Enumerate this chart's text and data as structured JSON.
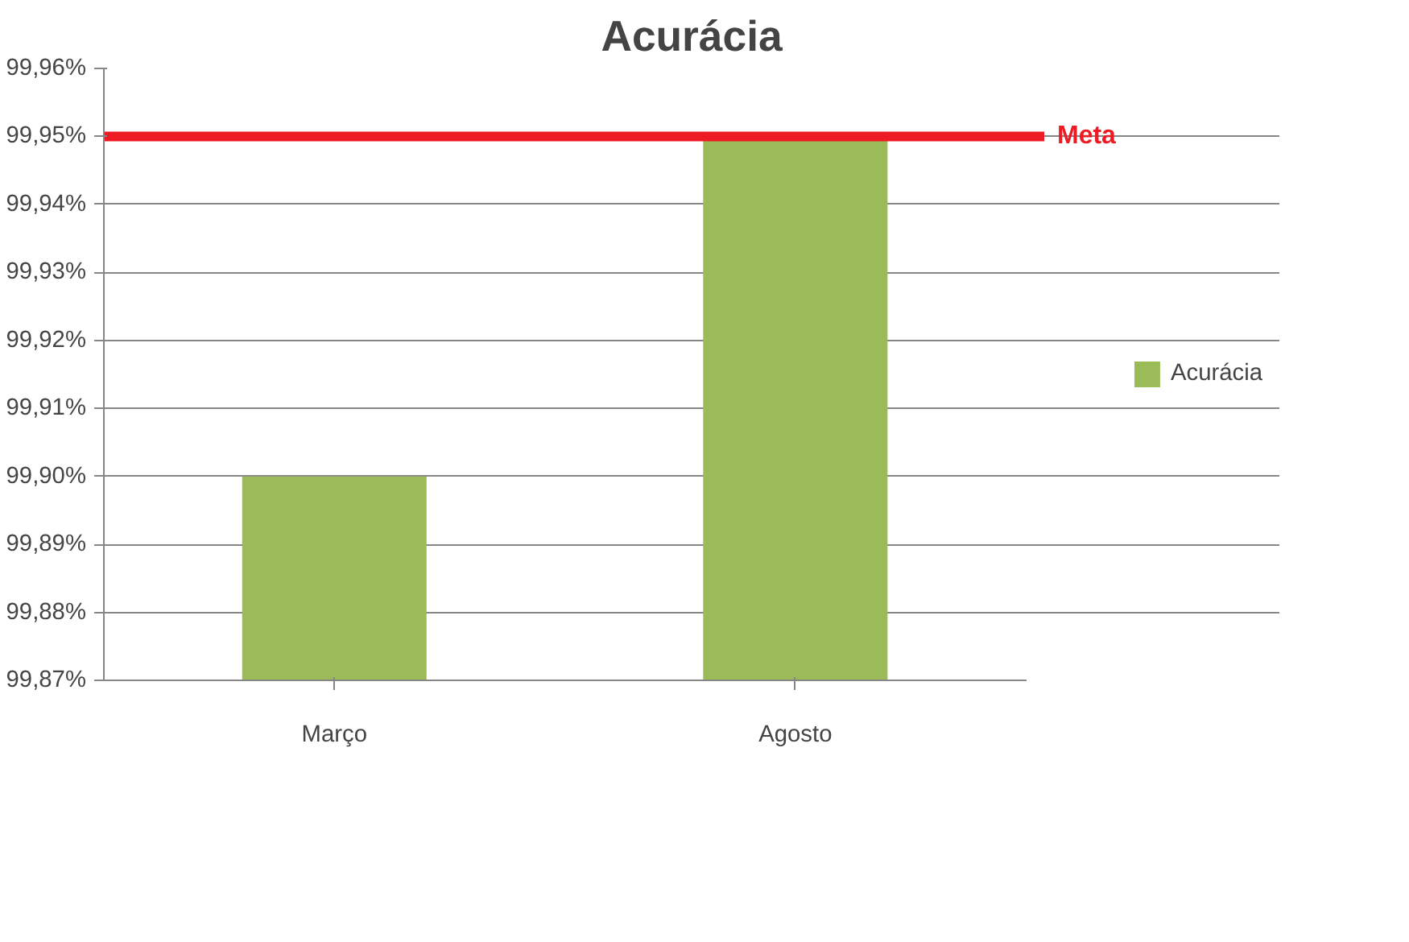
{
  "chart_data": {
    "type": "bar",
    "title": "Acurácia",
    "categories": [
      "Março",
      "Agosto"
    ],
    "series": [
      {
        "name": "Acurácia",
        "color": "#9bbb59",
        "values": [
          99.9,
          99.95
        ]
      }
    ],
    "ylim": [
      99.87,
      99.96
    ],
    "yticks": [
      {
        "value": 99.87,
        "label": "99,87%"
      },
      {
        "value": 99.88,
        "label": "99,88%"
      },
      {
        "value": 99.89,
        "label": "99,89%"
      },
      {
        "value": 99.9,
        "label": "99,90%"
      },
      {
        "value": 99.91,
        "label": "99,91%"
      },
      {
        "value": 99.92,
        "label": "99,92%"
      },
      {
        "value": 99.93,
        "label": "99,93%"
      },
      {
        "value": 99.94,
        "label": "99,94%"
      },
      {
        "value": 99.95,
        "label": "99,95%"
      },
      {
        "value": 99.96,
        "label": "99,96%"
      }
    ],
    "grid": "y",
    "legend": "right",
    "ref_lines": [
      {
        "axis": "y",
        "value": 99.95,
        "label": "Meta",
        "color": "#ed1c24"
      }
    ]
  }
}
